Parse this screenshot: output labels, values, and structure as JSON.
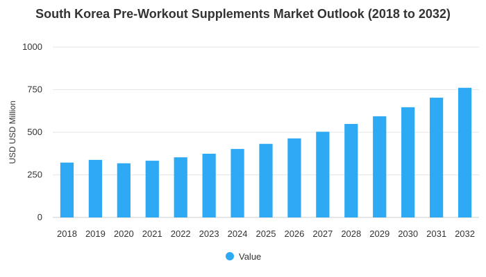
{
  "chart_data": {
    "type": "bar",
    "title": "South Korea Pre-Workout Supplements Market Outlook (2018 to 2032)",
    "xlabel": "",
    "ylabel": "USD USD Million",
    "categories": [
      "2018",
      "2019",
      "2020",
      "2021",
      "2022",
      "2023",
      "2024",
      "2025",
      "2026",
      "2027",
      "2028",
      "2029",
      "2030",
      "2031",
      "2032"
    ],
    "series": [
      {
        "name": "Value",
        "color": "#2eaaf5",
        "values": [
          322,
          338,
          318,
          333,
          353,
          374,
          402,
          432,
          464,
          503,
          549,
          594,
          647,
          703,
          761
        ]
      }
    ],
    "ylim": [
      0,
      1000
    ],
    "yticks": [
      0,
      250,
      500,
      750,
      1000
    ],
    "grid": true,
    "legend_position": "bottom"
  }
}
